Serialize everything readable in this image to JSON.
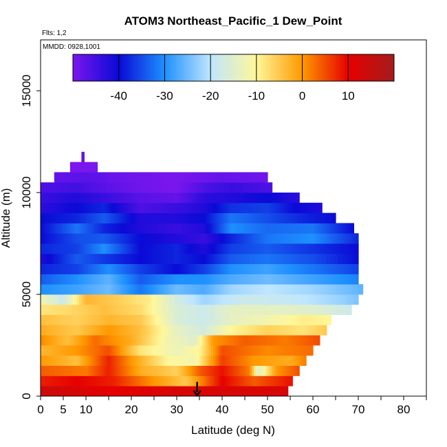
{
  "chart_data": {
    "type": "heatmap",
    "title": "ATOM3 Northeast_Pacific_1 Dew_Point",
    "subtitle_flights": "Flts: 1,2",
    "subtitle_dates": "MMDD: 0928,1001",
    "xlabel": "Latitude (deg N)",
    "ylabel": "Altitude (m)",
    "xlim": [
      0,
      85
    ],
    "ylim": [
      0,
      17500
    ],
    "x_ticks": [
      0,
      5,
      10,
      20,
      30,
      40,
      50,
      60,
      70,
      80
    ],
    "x_minor_ticks": [
      0,
      5,
      10,
      15,
      20,
      25,
      30,
      35,
      40,
      45,
      50,
      55,
      60,
      65,
      70,
      75,
      80,
      85
    ],
    "y_ticks": [
      0,
      5000,
      10000,
      15000
    ],
    "grid": false,
    "colorbar": {
      "placement": "top-inside",
      "range": [
        -50,
        20
      ],
      "ticks": [
        -40,
        -30,
        -20,
        -10,
        0,
        10
      ],
      "colors": [
        "#7a16ee",
        "#0a0ad6",
        "#1e90ff",
        "#bfe6ff",
        "#fff79a",
        "#ff9900",
        "#e60000",
        "#a51c1c"
      ]
    },
    "marker": {
      "type": "arrow-down",
      "x": 34.5,
      "y_top": 700,
      "y_bottom": 0
    },
    "bin_height_m": 500,
    "layers": [
      {
        "alt": 250,
        "x0": 0,
        "x1": 54.5,
        "pts": [
          [
            0,
            14
          ],
          [
            8,
            12
          ],
          [
            16,
            10
          ],
          [
            30,
            12
          ],
          [
            40,
            12
          ],
          [
            54.5,
            12
          ]
        ]
      },
      {
        "alt": 750,
        "x0": 0,
        "x1": 55.5,
        "pts": [
          [
            0,
            8
          ],
          [
            8,
            10
          ],
          [
            16,
            8
          ],
          [
            25,
            0
          ],
          [
            32,
            -5
          ],
          [
            40,
            10
          ],
          [
            47,
            4
          ],
          [
            55.5,
            9
          ]
        ]
      },
      {
        "alt": 1250,
        "x0": 0,
        "x1": 57,
        "pts": [
          [
            0,
            4
          ],
          [
            10,
            2
          ],
          [
            15,
            8
          ],
          [
            22,
            -2
          ],
          [
            30,
            -6
          ],
          [
            35,
            4
          ],
          [
            40,
            9
          ],
          [
            46,
            2
          ],
          [
            48,
            -15
          ],
          [
            52,
            0
          ],
          [
            57,
            5
          ]
        ]
      },
      {
        "alt": 1750,
        "x0": 0,
        "x1": 58.5,
        "pts": [
          [
            0,
            0
          ],
          [
            8,
            -4
          ],
          [
            15,
            8
          ],
          [
            20,
            0
          ],
          [
            28,
            -10
          ],
          [
            34,
            -12
          ],
          [
            40,
            6
          ],
          [
            47,
            0
          ],
          [
            55,
            -2
          ],
          [
            58.5,
            2
          ]
        ]
      },
      {
        "alt": 2250,
        "x0": 0,
        "x1": 60,
        "pts": [
          [
            0,
            -3
          ],
          [
            8,
            0
          ],
          [
            15,
            5
          ],
          [
            22,
            -8
          ],
          [
            30,
            -13
          ],
          [
            35,
            -10
          ],
          [
            40,
            5
          ],
          [
            50,
            1
          ],
          [
            60,
            3
          ]
        ]
      },
      {
        "alt": 2750,
        "x0": 0,
        "x1": 61.5,
        "pts": [
          [
            0,
            1
          ],
          [
            6,
            -4
          ],
          [
            12,
            3
          ],
          [
            20,
            -2
          ],
          [
            28,
            -12
          ],
          [
            34,
            -15
          ],
          [
            38,
            0
          ],
          [
            45,
            4
          ],
          [
            54,
            2
          ],
          [
            61.5,
            5
          ]
        ]
      },
      {
        "alt": 3250,
        "x0": 0,
        "x1": 63,
        "pts": [
          [
            0,
            -2
          ],
          [
            8,
            -5
          ],
          [
            15,
            0
          ],
          [
            22,
            -4
          ],
          [
            30,
            -14
          ],
          [
            36,
            -17
          ],
          [
            42,
            -10
          ],
          [
            50,
            -6
          ],
          [
            58,
            -8
          ],
          [
            63,
            -5
          ]
        ]
      },
      {
        "alt": 3750,
        "x0": 0,
        "x1": 64,
        "pts": [
          [
            0,
            -4
          ],
          [
            8,
            -6
          ],
          [
            15,
            -3
          ],
          [
            22,
            -5
          ],
          [
            30,
            -16
          ],
          [
            36,
            -18
          ],
          [
            42,
            -14
          ],
          [
            50,
            -12
          ],
          [
            58,
            -9
          ],
          [
            64,
            -10
          ]
        ]
      },
      {
        "alt": 4250,
        "x0": 0,
        "x1": 68.5,
        "pts": [
          [
            0,
            -8
          ],
          [
            6,
            -7
          ],
          [
            14,
            -4
          ],
          [
            22,
            -7
          ],
          [
            30,
            -16
          ],
          [
            36,
            -18
          ],
          [
            42,
            -14
          ],
          [
            50,
            -14
          ],
          [
            60,
            -15
          ],
          [
            68.5,
            -18
          ]
        ]
      },
      {
        "alt": 4750,
        "x0": 0,
        "x1": 70,
        "pts": [
          [
            0,
            -12
          ],
          [
            5,
            -18
          ],
          [
            10,
            -3
          ],
          [
            18,
            -6
          ],
          [
            24,
            -9
          ],
          [
            30,
            -17
          ],
          [
            36,
            -22
          ],
          [
            45,
            -18
          ],
          [
            55,
            -19
          ],
          [
            65,
            -22
          ],
          [
            70,
            -24
          ]
        ]
      },
      {
        "alt": 5250,
        "x0": 0,
        "x1": 71,
        "pts": [
          [
            0,
            -30
          ],
          [
            8,
            -28
          ],
          [
            15,
            -25
          ],
          [
            22,
            -32
          ],
          [
            30,
            -25
          ],
          [
            36,
            -27
          ],
          [
            42,
            -22
          ],
          [
            50,
            -20
          ],
          [
            60,
            -22
          ],
          [
            71,
            -26
          ]
        ]
      },
      {
        "alt": 5750,
        "x0": 0,
        "x1": 70,
        "pts": [
          [
            0,
            -34
          ],
          [
            8,
            -30
          ],
          [
            15,
            -26
          ],
          [
            22,
            -34
          ],
          [
            30,
            -30
          ],
          [
            36,
            -30
          ],
          [
            42,
            -27
          ],
          [
            50,
            -25
          ],
          [
            60,
            -28
          ],
          [
            70,
            -31
          ]
        ]
      },
      {
        "alt": 6250,
        "x0": 0,
        "x1": 70,
        "pts": [
          [
            0,
            -38
          ],
          [
            8,
            -36
          ],
          [
            15,
            -30
          ],
          [
            22,
            -36
          ],
          [
            30,
            -40
          ],
          [
            36,
            -36
          ],
          [
            42,
            -30
          ],
          [
            50,
            -28
          ],
          [
            60,
            -32
          ],
          [
            70,
            -36
          ]
        ]
      },
      {
        "alt": 6750,
        "x0": 0,
        "x1": 70,
        "pts": [
          [
            0,
            -42
          ],
          [
            8,
            -34
          ],
          [
            15,
            -37
          ],
          [
            22,
            -40
          ],
          [
            30,
            -38
          ],
          [
            36,
            -40
          ],
          [
            42,
            -34
          ],
          [
            50,
            -32
          ],
          [
            60,
            -35
          ],
          [
            70,
            -40
          ]
        ]
      },
      {
        "alt": 7250,
        "x0": 0,
        "x1": 70,
        "pts": [
          [
            0,
            -38
          ],
          [
            8,
            -36
          ],
          [
            14,
            -30
          ],
          [
            22,
            -40
          ],
          [
            30,
            -38
          ],
          [
            36,
            -42
          ],
          [
            42,
            -36
          ],
          [
            50,
            -34
          ],
          [
            60,
            -37
          ],
          [
            70,
            -40
          ]
        ]
      },
      {
        "alt": 7750,
        "x0": 0,
        "x1": 70,
        "pts": [
          [
            0,
            -40
          ],
          [
            8,
            -35
          ],
          [
            14,
            -34
          ],
          [
            22,
            -40
          ],
          [
            30,
            -42
          ],
          [
            36,
            -44
          ],
          [
            42,
            -38
          ],
          [
            50,
            -32
          ],
          [
            60,
            -30
          ],
          [
            70,
            -38
          ]
        ]
      },
      {
        "alt": 8250,
        "x0": 0,
        "x1": 69,
        "pts": [
          [
            0,
            -40
          ],
          [
            8,
            -32
          ],
          [
            14,
            -38
          ],
          [
            22,
            -42
          ],
          [
            30,
            -44
          ],
          [
            36,
            -42
          ],
          [
            42,
            -30
          ],
          [
            50,
            -33
          ],
          [
            60,
            -32
          ],
          [
            69,
            -40
          ]
        ]
      },
      {
        "alt": 8750,
        "x0": 0,
        "x1": 65,
        "pts": [
          [
            0,
            -40
          ],
          [
            8,
            -38
          ],
          [
            14,
            -34
          ],
          [
            22,
            -42
          ],
          [
            30,
            -42
          ],
          [
            36,
            -40
          ],
          [
            42,
            -32
          ],
          [
            50,
            -35
          ],
          [
            58,
            -38
          ],
          [
            65,
            -40
          ]
        ]
      },
      {
        "alt": 9250,
        "x0": 0,
        "x1": 62,
        "pts": [
          [
            0,
            -43
          ],
          [
            8,
            -40
          ],
          [
            14,
            -38
          ],
          [
            22,
            -46
          ],
          [
            30,
            -44
          ],
          [
            36,
            -42
          ],
          [
            42,
            -37
          ],
          [
            50,
            -36
          ],
          [
            56,
            -40
          ],
          [
            62,
            -42
          ]
        ]
      },
      {
        "alt": 9750,
        "x0": 0,
        "x1": 57,
        "pts": [
          [
            0,
            -44
          ],
          [
            8,
            -42
          ],
          [
            14,
            -44
          ],
          [
            22,
            -47
          ],
          [
            30,
            -48
          ],
          [
            36,
            -43
          ],
          [
            42,
            -42
          ],
          [
            50,
            -40
          ],
          [
            57,
            -43
          ]
        ]
      },
      {
        "alt": 10250,
        "x0": 0,
        "x1": 51,
        "pts": [
          [
            0,
            -46
          ],
          [
            8,
            -45
          ],
          [
            14,
            -47
          ],
          [
            22,
            -49
          ],
          [
            30,
            -50
          ],
          [
            36,
            -46
          ],
          [
            42,
            -44
          ],
          [
            51,
            -46
          ]
        ]
      },
      {
        "alt": 10750,
        "x0": 3,
        "x1": 50,
        "pts": [
          [
            3,
            -48
          ],
          [
            10,
            -47
          ],
          [
            20,
            -49
          ],
          [
            30,
            -50
          ],
          [
            40,
            -48
          ],
          [
            50,
            -49
          ]
        ]
      },
      {
        "alt": 11250,
        "x0": 6.5,
        "x1": 12.5,
        "pts": [
          [
            6.5,
            -50
          ],
          [
            12.5,
            -50
          ]
        ]
      },
      {
        "alt": 11750,
        "x0": 9,
        "x1": 9.6,
        "pts": [
          [
            9,
            -48
          ],
          [
            9.6,
            -48
          ]
        ]
      }
    ]
  }
}
